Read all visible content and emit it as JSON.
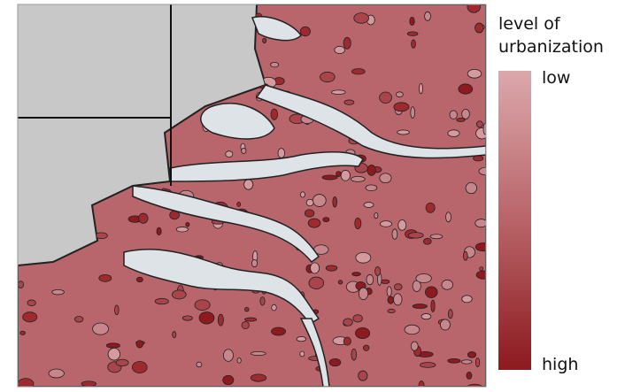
{
  "legend": {
    "title": [
      "level of",
      "urbanization"
    ],
    "low": "low",
    "high": "high"
  }
}
